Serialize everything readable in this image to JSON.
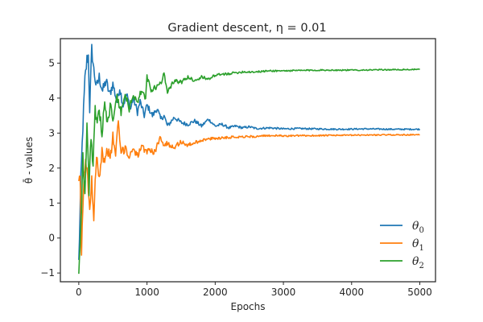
{
  "chart_data": {
    "type": "line",
    "title": "Gradient descent, η = 0.01",
    "xlabel": "Epochs",
    "ylabel": "θ̄ - values",
    "xlim": [
      -270,
      5230
    ],
    "ylim": [
      -1.25,
      5.7
    ],
    "xticks": [
      0,
      1000,
      2000,
      3000,
      4000,
      5000
    ],
    "xtick_labels": [
      "0",
      "1000",
      "2000",
      "3000",
      "4000",
      "5000"
    ],
    "yticks": [
      -1,
      0,
      1,
      2,
      3,
      4,
      5
    ],
    "ytick_labels": [
      "−1",
      "0",
      "1",
      "2",
      "3",
      "4",
      "5"
    ],
    "grid": false,
    "legend_position": "lower-right",
    "series": [
      {
        "name": "θ0",
        "sub": "0",
        "color": "#1f77b4",
        "anchors": [
          [
            0,
            -0.7
          ],
          [
            30,
            1.6
          ],
          [
            60,
            3.2
          ],
          [
            90,
            4.5
          ],
          [
            120,
            5.1
          ],
          [
            140,
            5.2
          ],
          [
            160,
            3.7
          ],
          [
            190,
            5.4
          ],
          [
            220,
            4.8
          ],
          [
            260,
            4.3
          ],
          [
            300,
            4.6
          ],
          [
            350,
            4.2
          ],
          [
            400,
            4.5
          ],
          [
            450,
            4.1
          ],
          [
            500,
            4.4
          ],
          [
            560,
            3.9
          ],
          [
            600,
            4.3
          ],
          [
            650,
            3.8
          ],
          [
            700,
            4.1
          ],
          [
            760,
            3.7
          ],
          [
            800,
            4.0
          ],
          [
            860,
            3.6
          ],
          [
            900,
            3.9
          ],
          [
            960,
            3.5
          ],
          [
            1000,
            3.8
          ],
          [
            1080,
            3.5
          ],
          [
            1150,
            3.7
          ],
          [
            1200,
            3.4
          ],
          [
            1250,
            3.5
          ],
          [
            1300,
            3.2
          ],
          [
            1400,
            3.45
          ],
          [
            1500,
            3.3
          ],
          [
            1600,
            3.25
          ],
          [
            1700,
            3.35
          ],
          [
            1800,
            3.2
          ],
          [
            1900,
            3.4
          ],
          [
            2000,
            3.2
          ],
          [
            2100,
            3.25
          ],
          [
            2200,
            3.15
          ],
          [
            2300,
            3.2
          ],
          [
            2400,
            3.15
          ],
          [
            2500,
            3.18
          ],
          [
            2600,
            3.13
          ],
          [
            2800,
            3.15
          ],
          [
            3000,
            3.12
          ],
          [
            3200,
            3.13
          ],
          [
            3500,
            3.12
          ],
          [
            3800,
            3.11
          ],
          [
            4200,
            3.12
          ],
          [
            4600,
            3.11
          ],
          [
            5000,
            3.11
          ]
        ],
        "noise_amp": 0.22,
        "noise_decay": 900,
        "noise_floor": 0.018
      },
      {
        "name": "θ1",
        "sub": "1",
        "color": "#ff7f0e",
        "anchors": [
          [
            0,
            1.4
          ],
          [
            20,
            1.8
          ],
          [
            40,
            -0.45
          ],
          [
            70,
            1.4
          ],
          [
            100,
            2.4
          ],
          [
            130,
            1.6
          ],
          [
            160,
            0.9
          ],
          [
            190,
            1.6
          ],
          [
            220,
            0.65
          ],
          [
            260,
            2.5
          ],
          [
            300,
            1.7
          ],
          [
            340,
            2.5
          ],
          [
            380,
            2.1
          ],
          [
            420,
            2.6
          ],
          [
            460,
            2.2
          ],
          [
            500,
            2.9
          ],
          [
            540,
            2.4
          ],
          [
            580,
            3.3
          ],
          [
            620,
            2.4
          ],
          [
            680,
            2.6
          ],
          [
            740,
            2.3
          ],
          [
            800,
            2.6
          ],
          [
            860,
            2.35
          ],
          [
            920,
            2.6
          ],
          [
            980,
            2.45
          ],
          [
            1050,
            2.55
          ],
          [
            1100,
            2.4
          ],
          [
            1200,
            2.9
          ],
          [
            1250,
            2.65
          ],
          [
            1300,
            2.7
          ],
          [
            1400,
            2.6
          ],
          [
            1500,
            2.75
          ],
          [
            1600,
            2.65
          ],
          [
            1800,
            2.8
          ],
          [
            2000,
            2.85
          ],
          [
            2200,
            2.88
          ],
          [
            2400,
            2.9
          ],
          [
            2600,
            2.9
          ],
          [
            2800,
            2.93
          ],
          [
            3000,
            2.92
          ],
          [
            3500,
            2.93
          ],
          [
            4000,
            2.94
          ],
          [
            4500,
            2.95
          ],
          [
            5000,
            2.95
          ]
        ],
        "noise_amp": 0.24,
        "noise_decay": 900,
        "noise_floor": 0.015
      },
      {
        "name": "θ2",
        "sub": "2",
        "color": "#2ca02c",
        "anchors": [
          [
            0,
            -0.9
          ],
          [
            30,
            0.3
          ],
          [
            60,
            2.3
          ],
          [
            90,
            1.2
          ],
          [
            120,
            3.2
          ],
          [
            150,
            1.4
          ],
          [
            180,
            3.0
          ],
          [
            210,
            2.0
          ],
          [
            240,
            3.7
          ],
          [
            270,
            3.2
          ],
          [
            300,
            3.6
          ],
          [
            340,
            3.0
          ],
          [
            380,
            4.0
          ],
          [
            420,
            3.2
          ],
          [
            460,
            3.8
          ],
          [
            500,
            3.4
          ],
          [
            560,
            4.0
          ],
          [
            620,
            3.6
          ],
          [
            680,
            4.1
          ],
          [
            740,
            3.7
          ],
          [
            800,
            4.1
          ],
          [
            860,
            3.9
          ],
          [
            920,
            4.2
          ],
          [
            980,
            4.0
          ],
          [
            1000,
            4.6
          ],
          [
            1060,
            4.2
          ],
          [
            1120,
            4.3
          ],
          [
            1200,
            4.4
          ],
          [
            1250,
            4.7
          ],
          [
            1300,
            4.2
          ],
          [
            1400,
            4.5
          ],
          [
            1500,
            4.45
          ],
          [
            1600,
            4.6
          ],
          [
            1700,
            4.5
          ],
          [
            1800,
            4.6
          ],
          [
            1900,
            4.55
          ],
          [
            2000,
            4.65
          ],
          [
            2200,
            4.7
          ],
          [
            2400,
            4.75
          ],
          [
            2600,
            4.75
          ],
          [
            2800,
            4.78
          ],
          [
            3000,
            4.78
          ],
          [
            3500,
            4.8
          ],
          [
            4000,
            4.8
          ],
          [
            4500,
            4.81
          ],
          [
            5000,
            4.82
          ]
        ],
        "noise_amp": 0.22,
        "noise_decay": 900,
        "noise_floor": 0.015
      }
    ]
  }
}
